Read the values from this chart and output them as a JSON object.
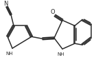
{
  "bg_color": "#ffffff",
  "line_color": "#2a2a2a",
  "line_width": 1.1,
  "figsize": [
    1.4,
    0.93
  ],
  "dpi": 100,
  "xlim": [
    0,
    140
  ],
  "ylim": [
    0,
    93
  ]
}
